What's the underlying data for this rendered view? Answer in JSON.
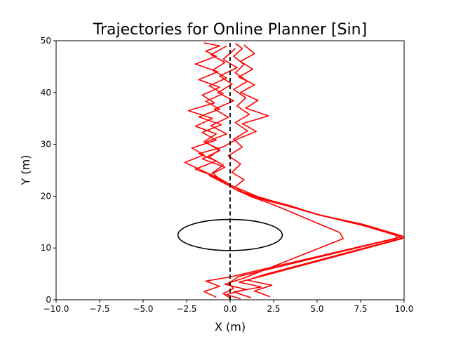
{
  "chart_data": {
    "type": "line",
    "title": "Trajectories for Online Planner [Sin]",
    "xlabel": "X (m)",
    "ylabel": "Y (m)",
    "xlim": [
      -10,
      10
    ],
    "ylim": [
      0,
      50
    ],
    "xticks": [
      -10,
      -7.5,
      -5,
      -2.5,
      0,
      2.5,
      5,
      7.5,
      10
    ],
    "xtick_labels": [
      "−10.0",
      "−7.5",
      "−5.0",
      "−2.5",
      "0.0",
      "2.5",
      "5.0",
      "7.5",
      "10.0"
    ],
    "yticks": [
      0,
      10,
      20,
      30,
      40,
      50
    ],
    "ytick_labels": [
      "0",
      "10",
      "20",
      "30",
      "40",
      "50"
    ],
    "grid": false,
    "colors": {
      "trajectory": "#ff0000",
      "reference": "#000000",
      "obstacle": "#000000"
    },
    "reference_line": {
      "style": "dashed",
      "x": [
        0,
        0
      ],
      "y": [
        0,
        50
      ]
    },
    "obstacle": {
      "shape": "ellipse",
      "center": [
        0,
        12.5
      ],
      "rx": 3.0,
      "ry": 3.0
    },
    "series": [
      {
        "x": [
          0.0,
          -0.4,
          0.2,
          -0.1,
          0.5,
          9.6,
          9.5,
          7.5,
          5.0,
          3.0,
          1.5,
          0.6,
          0.1,
          -0.5,
          -1.0,
          -0.4,
          -1.2,
          -0.6,
          -1.5,
          -0.8,
          -2.0,
          -1.0,
          -2.4,
          -0.9,
          -1.6,
          -0.6,
          -1.8,
          -0.7,
          -2.0,
          -0.8,
          -1.4,
          -0.6,
          -1.5
        ],
        "y": [
          0.3,
          1.2,
          2.2,
          3.2,
          4.5,
          11.9,
          12.5,
          14.5,
          16.5,
          18.5,
          19.8,
          20.8,
          21.7,
          23.0,
          24.5,
          26.0,
          27.5,
          29.0,
          30.5,
          32.0,
          33.5,
          35.0,
          36.5,
          38.0,
          39.5,
          41.0,
          42.5,
          44.0,
          45.5,
          47.0,
          48.0,
          49.0,
          49.6
        ]
      },
      {
        "x": [
          1.2,
          0.2,
          1.8,
          0.5,
          2.1,
          9.9,
          9.8,
          7.8,
          5.2,
          3.2,
          1.7,
          0.8,
          0.3,
          0.8,
          0.1,
          0.6,
          -0.1,
          0.7,
          0.2,
          1.0,
          0.3,
          1.1,
          0.4,
          0.9,
          0.2,
          1.0,
          0.3,
          0.8,
          0.2,
          0.7,
          0.3
        ],
        "y": [
          0.4,
          1.5,
          2.5,
          3.4,
          4.8,
          11.8,
          12.2,
          14.2,
          16.3,
          18.2,
          19.5,
          20.6,
          21.8,
          23.2,
          24.6,
          26.2,
          27.8,
          29.5,
          31.0,
          32.6,
          34.2,
          35.8,
          37.4,
          39.0,
          40.6,
          42.2,
          43.8,
          45.4,
          47.0,
          48.5,
          49.5
        ]
      },
      {
        "x": [
          -0.8,
          -1.5,
          -0.6,
          -1.4,
          0.0,
          9.8,
          9.6,
          7.6,
          5.1,
          3.1,
          1.6,
          0.5,
          -0.2,
          -1.2,
          -2.6,
          -1.5,
          -2.2,
          -0.8,
          -1.6,
          -0.5,
          -1.8,
          -0.6,
          -1.4,
          -0.4,
          -1.2,
          -0.2,
          -1.0,
          -0.3,
          -1.1,
          -0.2
        ],
        "y": [
          0.5,
          1.6,
          2.6,
          3.6,
          4.4,
          12.1,
          12.6,
          14.6,
          16.4,
          18.4,
          19.9,
          21.0,
          22.3,
          24.3,
          26.5,
          28.0,
          29.3,
          30.8,
          32.3,
          33.8,
          35.3,
          36.8,
          38.3,
          39.8,
          41.3,
          42.8,
          44.3,
          45.8,
          47.3,
          49.0
        ]
      },
      {
        "x": [
          2.3,
          1.4,
          2.4,
          1.0,
          2.0,
          10.0,
          9.9,
          7.9,
          5.3,
          3.3,
          1.8,
          0.9,
          0.1,
          -0.7,
          -2.0,
          -0.8,
          -1.8,
          -0.4,
          0.4,
          1.5,
          0.7,
          2.2,
          0.9,
          1.6,
          0.6,
          1.4,
          0.5,
          1.3,
          0.6,
          1.4,
          0.8
        ],
        "y": [
          0.6,
          1.7,
          2.8,
          3.8,
          4.9,
          12.0,
          12.3,
          14.3,
          16.2,
          18.3,
          19.6,
          20.9,
          22.0,
          23.6,
          25.2,
          26.8,
          28.2,
          29.5,
          31.0,
          32.5,
          34.0,
          35.5,
          37.0,
          38.5,
          40.0,
          41.5,
          43.0,
          44.5,
          46.0,
          47.5,
          49.2
        ]
      },
      {
        "x": [
          0.6,
          -0.2,
          0.9,
          -0.3,
          0.8,
          6.5,
          6.3,
          5.0,
          3.6,
          2.3,
          1.2,
          0.4,
          -0.4,
          -1.2,
          -0.3,
          -1.6,
          -0.6,
          -1.4,
          -0.2,
          -1.1,
          -0.1,
          -0.9,
          0.2,
          -0.7,
          0.1,
          -0.6,
          0.4,
          -0.4,
          0.3
        ],
        "y": [
          0.2,
          1.0,
          2.0,
          3.0,
          4.2,
          11.8,
          13.0,
          14.8,
          16.8,
          18.6,
          19.9,
          21.2,
          22.6,
          24.0,
          25.6,
          27.2,
          28.8,
          30.4,
          32.0,
          33.6,
          35.2,
          36.8,
          38.4,
          40.0,
          41.6,
          43.2,
          44.8,
          46.4,
          48.5
        ]
      }
    ]
  }
}
